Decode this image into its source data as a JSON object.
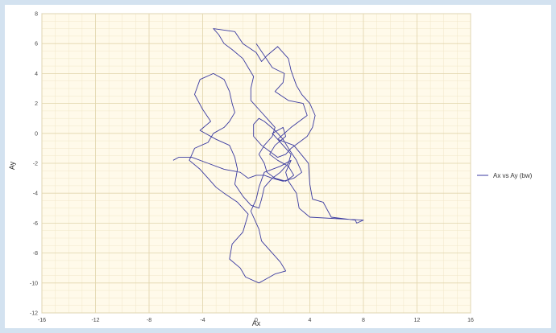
{
  "chart_data": {
    "type": "line",
    "title": "",
    "xlabel": "Ax",
    "ylabel": "Ay",
    "xlim": [
      -16,
      16
    ],
    "ylim": [
      -12,
      8
    ],
    "x_ticks": [
      "-16",
      "-12",
      "-8",
      "-4",
      "0",
      "4",
      "8",
      "12",
      "16"
    ],
    "y_ticks": [
      "-12",
      "-10",
      "-8",
      "-6",
      "-4",
      "-2",
      "0",
      "2",
      "4",
      "6",
      "8"
    ],
    "grid": true,
    "legend_position": "right",
    "series": [
      {
        "name": "Ax vs Ay (bw)",
        "color": "#3a3aa0",
        "x": [
          0,
          0.6,
          1.2,
          2.1,
          2.0,
          1.4,
          2.4,
          3.5,
          3.8,
          2.6,
          1.6,
          2.8,
          3.9,
          4.0,
          4.2,
          5.0,
          5.6,
          7.4,
          7.5,
          8.0,
          4.0,
          3.2,
          3.0,
          2.4,
          2.2,
          2.6,
          1.8,
          0.6,
          0.2,
          0.0,
          -0.4,
          0.2,
          0.4,
          1.0,
          1.8,
          2.2,
          1.4,
          0.6,
          0.2,
          -0.8,
          -1.2,
          -2.0,
          -1.8,
          -1.0,
          -0.6,
          -1.4,
          -2.4,
          -3.0,
          -3.6,
          -4.2,
          -5.0,
          -4.6,
          -3.6,
          -3.2,
          -2.4,
          -2.0,
          -1.6,
          -1.8,
          -2.0,
          -2.4,
          -3.2,
          -4.2,
          -4.6,
          -4.0,
          -3.4,
          -4.2,
          -3.0,
          -2.0,
          -1.6,
          -1.4,
          -1.6,
          -1.0,
          -0.4,
          0.2,
          0.4,
          0.6,
          1.2,
          1.8,
          2.4,
          2.6,
          2.0,
          1.6,
          1.2,
          2.0,
          2.2,
          1.4,
          1.0,
          1.6,
          2.4,
          2.8,
          2.2,
          1.4,
          0.8,
          0.6,
          0.2,
          0.6,
          1.2,
          1.4,
          0.8,
          0.2,
          -0.4,
          -0.4,
          -0.2,
          -0.6,
          -1.0,
          -1.8,
          -2.4,
          -2.8,
          -3.2,
          -1.6,
          -1.0,
          0.0,
          0.4,
          0.8,
          1.6,
          2.4,
          2.6,
          3.0,
          3.4,
          4.0,
          4.4,
          4.2,
          3.8,
          3.2,
          2.6,
          2.2,
          1.6,
          1.0,
          0.4,
          -0.2,
          -0.2,
          0.2,
          0.6,
          1.4,
          2.0,
          2.4,
          3.0,
          3.4,
          2.8,
          2.0,
          1.2,
          0.6,
          0.0,
          -0.6,
          -1.2,
          -2.4,
          -3.6,
          -4.8,
          -5.8,
          -6.2
        ],
        "y": [
          6.0,
          5.2,
          4.4,
          4.0,
          3.4,
          2.8,
          2.2,
          2.0,
          1.2,
          0.4,
          -0.4,
          -0.8,
          -2.0,
          -3.4,
          -4.4,
          -4.6,
          -5.6,
          -5.8,
          -6.0,
          -5.8,
          -5.6,
          -5.0,
          -4.0,
          -3.2,
          -2.6,
          -1.8,
          -2.2,
          -2.6,
          -3.6,
          -4.4,
          -5.2,
          -6.4,
          -7.2,
          -7.8,
          -8.6,
          -9.2,
          -9.4,
          -9.8,
          -10.0,
          -9.6,
          -9.0,
          -8.4,
          -7.4,
          -6.6,
          -5.4,
          -4.6,
          -4.0,
          -3.6,
          -3.0,
          -2.4,
          -1.8,
          -1.0,
          -0.6,
          0.0,
          0.4,
          0.8,
          1.4,
          2.0,
          2.8,
          3.6,
          4.0,
          3.6,
          2.6,
          1.6,
          0.8,
          0.2,
          -0.4,
          -0.8,
          -1.6,
          -2.4,
          -3.4,
          -4.2,
          -4.8,
          -5.0,
          -4.4,
          -3.6,
          -3.0,
          -2.6,
          -2.0,
          -1.4,
          -0.8,
          -0.4,
          0.0,
          0.4,
          -0.2,
          -0.8,
          -1.4,
          -1.8,
          -2.2,
          -2.8,
          -3.2,
          -3.0,
          -2.6,
          -2.0,
          -1.4,
          -0.8,
          -0.2,
          0.4,
          1.0,
          1.6,
          2.2,
          3.0,
          3.8,
          4.4,
          5.0,
          5.6,
          6.0,
          6.6,
          7.0,
          6.8,
          6.0,
          5.4,
          4.8,
          5.2,
          5.8,
          5.0,
          4.2,
          3.2,
          2.6,
          2.0,
          1.2,
          0.4,
          -0.2,
          -0.6,
          -1.0,
          -1.4,
          -1.6,
          -1.2,
          -0.8,
          -0.2,
          0.6,
          1.0,
          0.8,
          0.2,
          -0.4,
          -1.0,
          -1.8,
          -2.6,
          -3.0,
          -3.2,
          -3.0,
          -2.8,
          -2.8,
          -3.0,
          -2.6,
          -2.4,
          -2.0,
          -1.6,
          -1.6,
          -1.8
        ]
      }
    ]
  }
}
